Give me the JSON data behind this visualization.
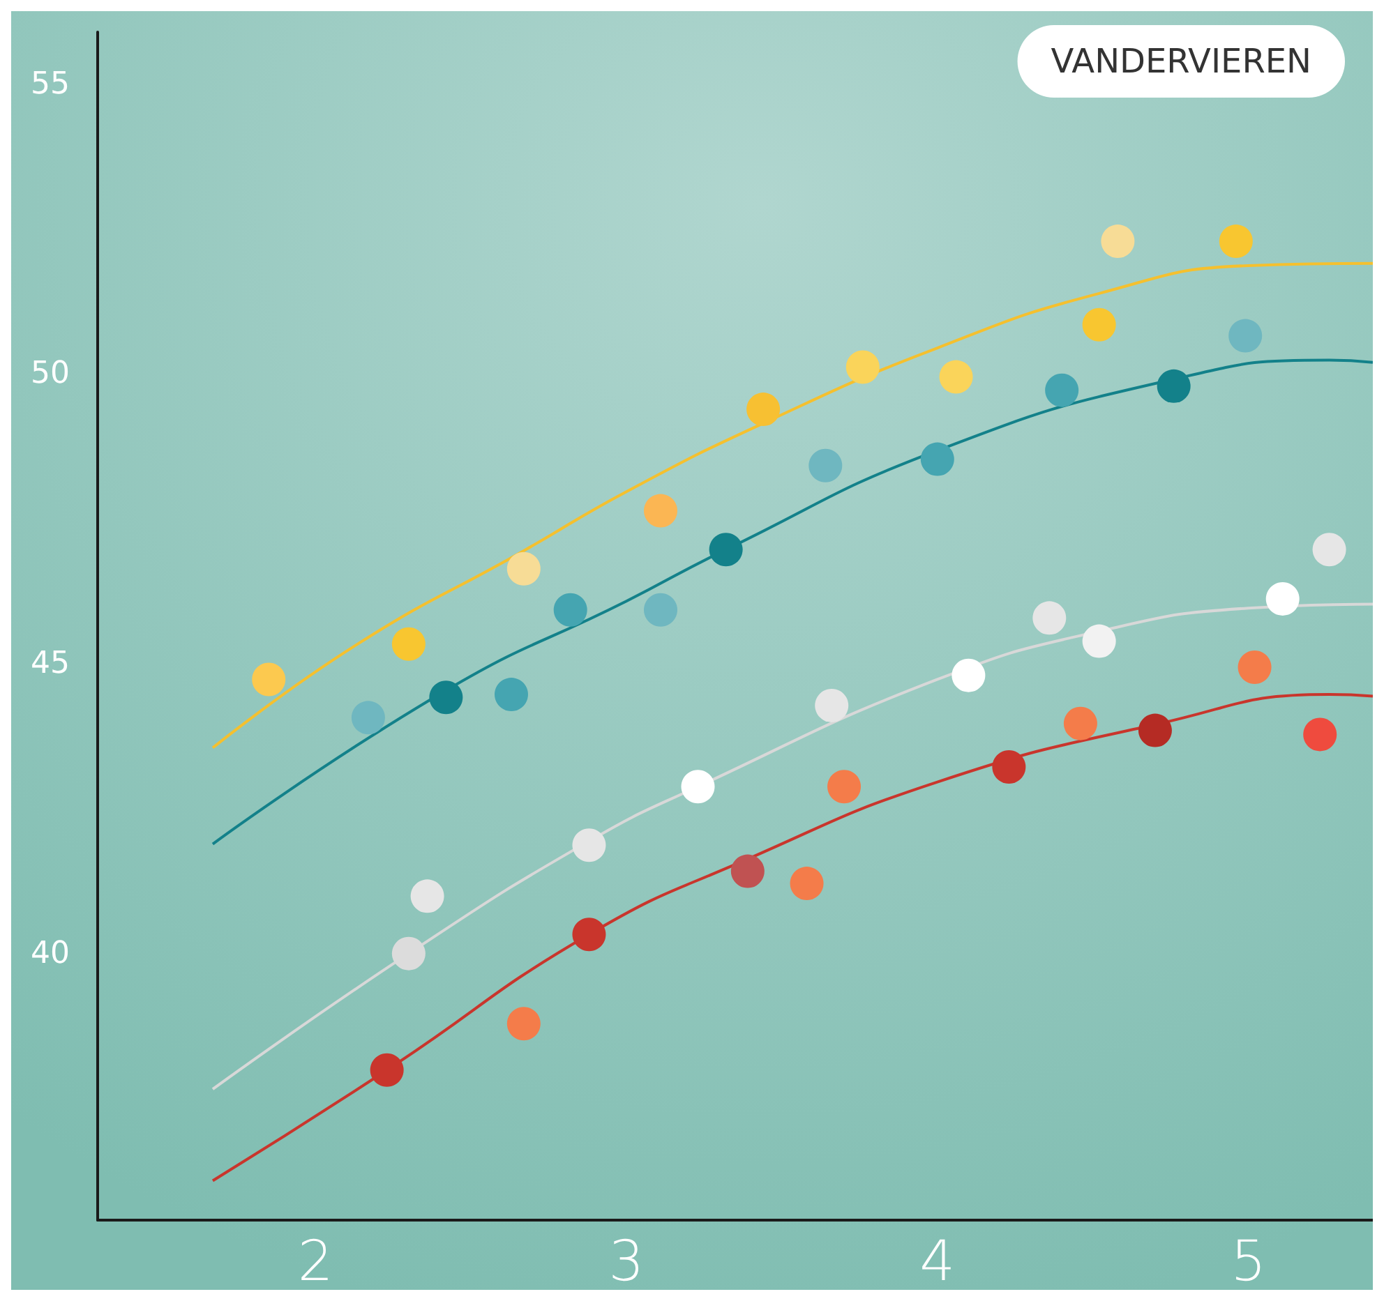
{
  "chart_data": {
    "type": "scatter",
    "marker": "circle",
    "xlim": [
      1.3,
      5.4
    ],
    "ylim": [
      35.4,
      55.9
    ],
    "xticks": [
      2,
      3,
      4,
      5
    ],
    "yticks": [
      40,
      45,
      50,
      55
    ],
    "annotations": [
      "VANDERVIEREN"
    ],
    "series": [
      {
        "type": "line",
        "marker": "none",
        "color": "#f5c02e",
        "x": [
          1.67,
          2.13,
          2.67,
          3.0,
          3.44,
          4.0,
          4.52,
          5.0,
          5.4
        ],
        "values": [
          43.55,
          45.32,
          46.95,
          47.97,
          49.15,
          50.45,
          51.39,
          51.87,
          51.91
        ]
      },
      {
        "type": "line",
        "marker": "none",
        "color": "#13818a",
        "x": [
          1.67,
          2.42,
          3.0,
          3.32,
          4.0,
          4.76,
          5.26,
          5.4
        ],
        "values": [
          41.89,
          44.54,
          46.08,
          46.97,
          48.68,
          49.91,
          50.24,
          50.2
        ]
      },
      {
        "type": "line",
        "marker": "none",
        "color": "#d8d8d8",
        "x": [
          1.67,
          2.3,
          2.88,
          3.23,
          4.0,
          4.52,
          5.0,
          5.4
        ],
        "values": [
          37.66,
          40.0,
          41.94,
          42.88,
          44.73,
          45.56,
          45.96,
          46.03
        ]
      },
      {
        "type": "line",
        "marker": "none",
        "color": "#c9352c",
        "x": [
          1.67,
          2.23,
          2.88,
          3.39,
          4.0,
          4.7,
          5.26,
          5.4
        ],
        "values": [
          36.08,
          37.99,
          40.33,
          41.63,
          42.96,
          43.95,
          44.47,
          44.44
        ]
      },
      {
        "color": "#f8c630",
        "x": [
          1.85,
          2.3,
          2.67,
          3.11,
          3.44,
          3.76,
          4.06,
          4.52,
          4.58,
          4.96
        ],
        "values": [
          44.73,
          45.34,
          46.64,
          47.64,
          49.39,
          50.12,
          49.95,
          50.85,
          52.29,
          52.29
        ],
        "colors": [
          "#fcc94f",
          "#f8c630",
          "#f7dc96",
          "#fbb653",
          "#f7c032",
          "#fad45a",
          "#fad45a",
          "#f8c630",
          "#f7dc96",
          "#f8c630"
        ]
      },
      {
        "color": "#13818a",
        "x": [
          2.17,
          2.42,
          2.63,
          2.82,
          3.11,
          3.32,
          3.64,
          4.0,
          4.4,
          4.76,
          4.99
        ],
        "values": [
          44.07,
          44.42,
          44.47,
          45.93,
          45.93,
          46.97,
          48.42,
          48.53,
          49.72,
          49.79,
          50.66
        ],
        "colors": [
          "#6fb7c0",
          "#13818a",
          "#45a5b1",
          "#45a5b1",
          "#6fb7c0",
          "#13818a",
          "#6fb7c0",
          "#45a5b1",
          "#45a5b1",
          "#13818a",
          "#6fb7c0"
        ]
      },
      {
        "color": "#e6e6e6",
        "x": [
          2.3,
          2.36,
          2.88,
          3.23,
          3.66,
          4.1,
          4.36,
          4.52,
          5.11,
          5.26
        ],
        "values": [
          40.0,
          40.99,
          41.87,
          42.88,
          44.28,
          44.8,
          45.79,
          45.39,
          46.12,
          46.97
        ],
        "colors": [
          "#dcdcdc",
          "#e6e6e6",
          "#e6e6e6",
          "#ffffff",
          "#e6e6e6",
          "#ffffff",
          "#e6e6e6",
          "#f2f2f2",
          "#ffffff",
          "#e6e6e6"
        ]
      },
      {
        "color": "#c9352c",
        "x": [
          2.23,
          2.67,
          2.88,
          3.39,
          3.58,
          3.7,
          4.23,
          4.46,
          4.7,
          5.02,
          5.23
        ],
        "values": [
          37.99,
          38.79,
          40.33,
          41.42,
          41.21,
          42.88,
          43.22,
          43.97,
          43.85,
          44.94,
          43.78
        ],
        "colors": [
          "#c9352c",
          "#f47c4a",
          "#c9352c",
          "#c05252",
          "#f47c4a",
          "#f47c4a",
          "#c9352c",
          "#f47c4a",
          "#b52b24",
          "#f47c4a",
          "#ef4b3e"
        ]
      }
    ]
  }
}
